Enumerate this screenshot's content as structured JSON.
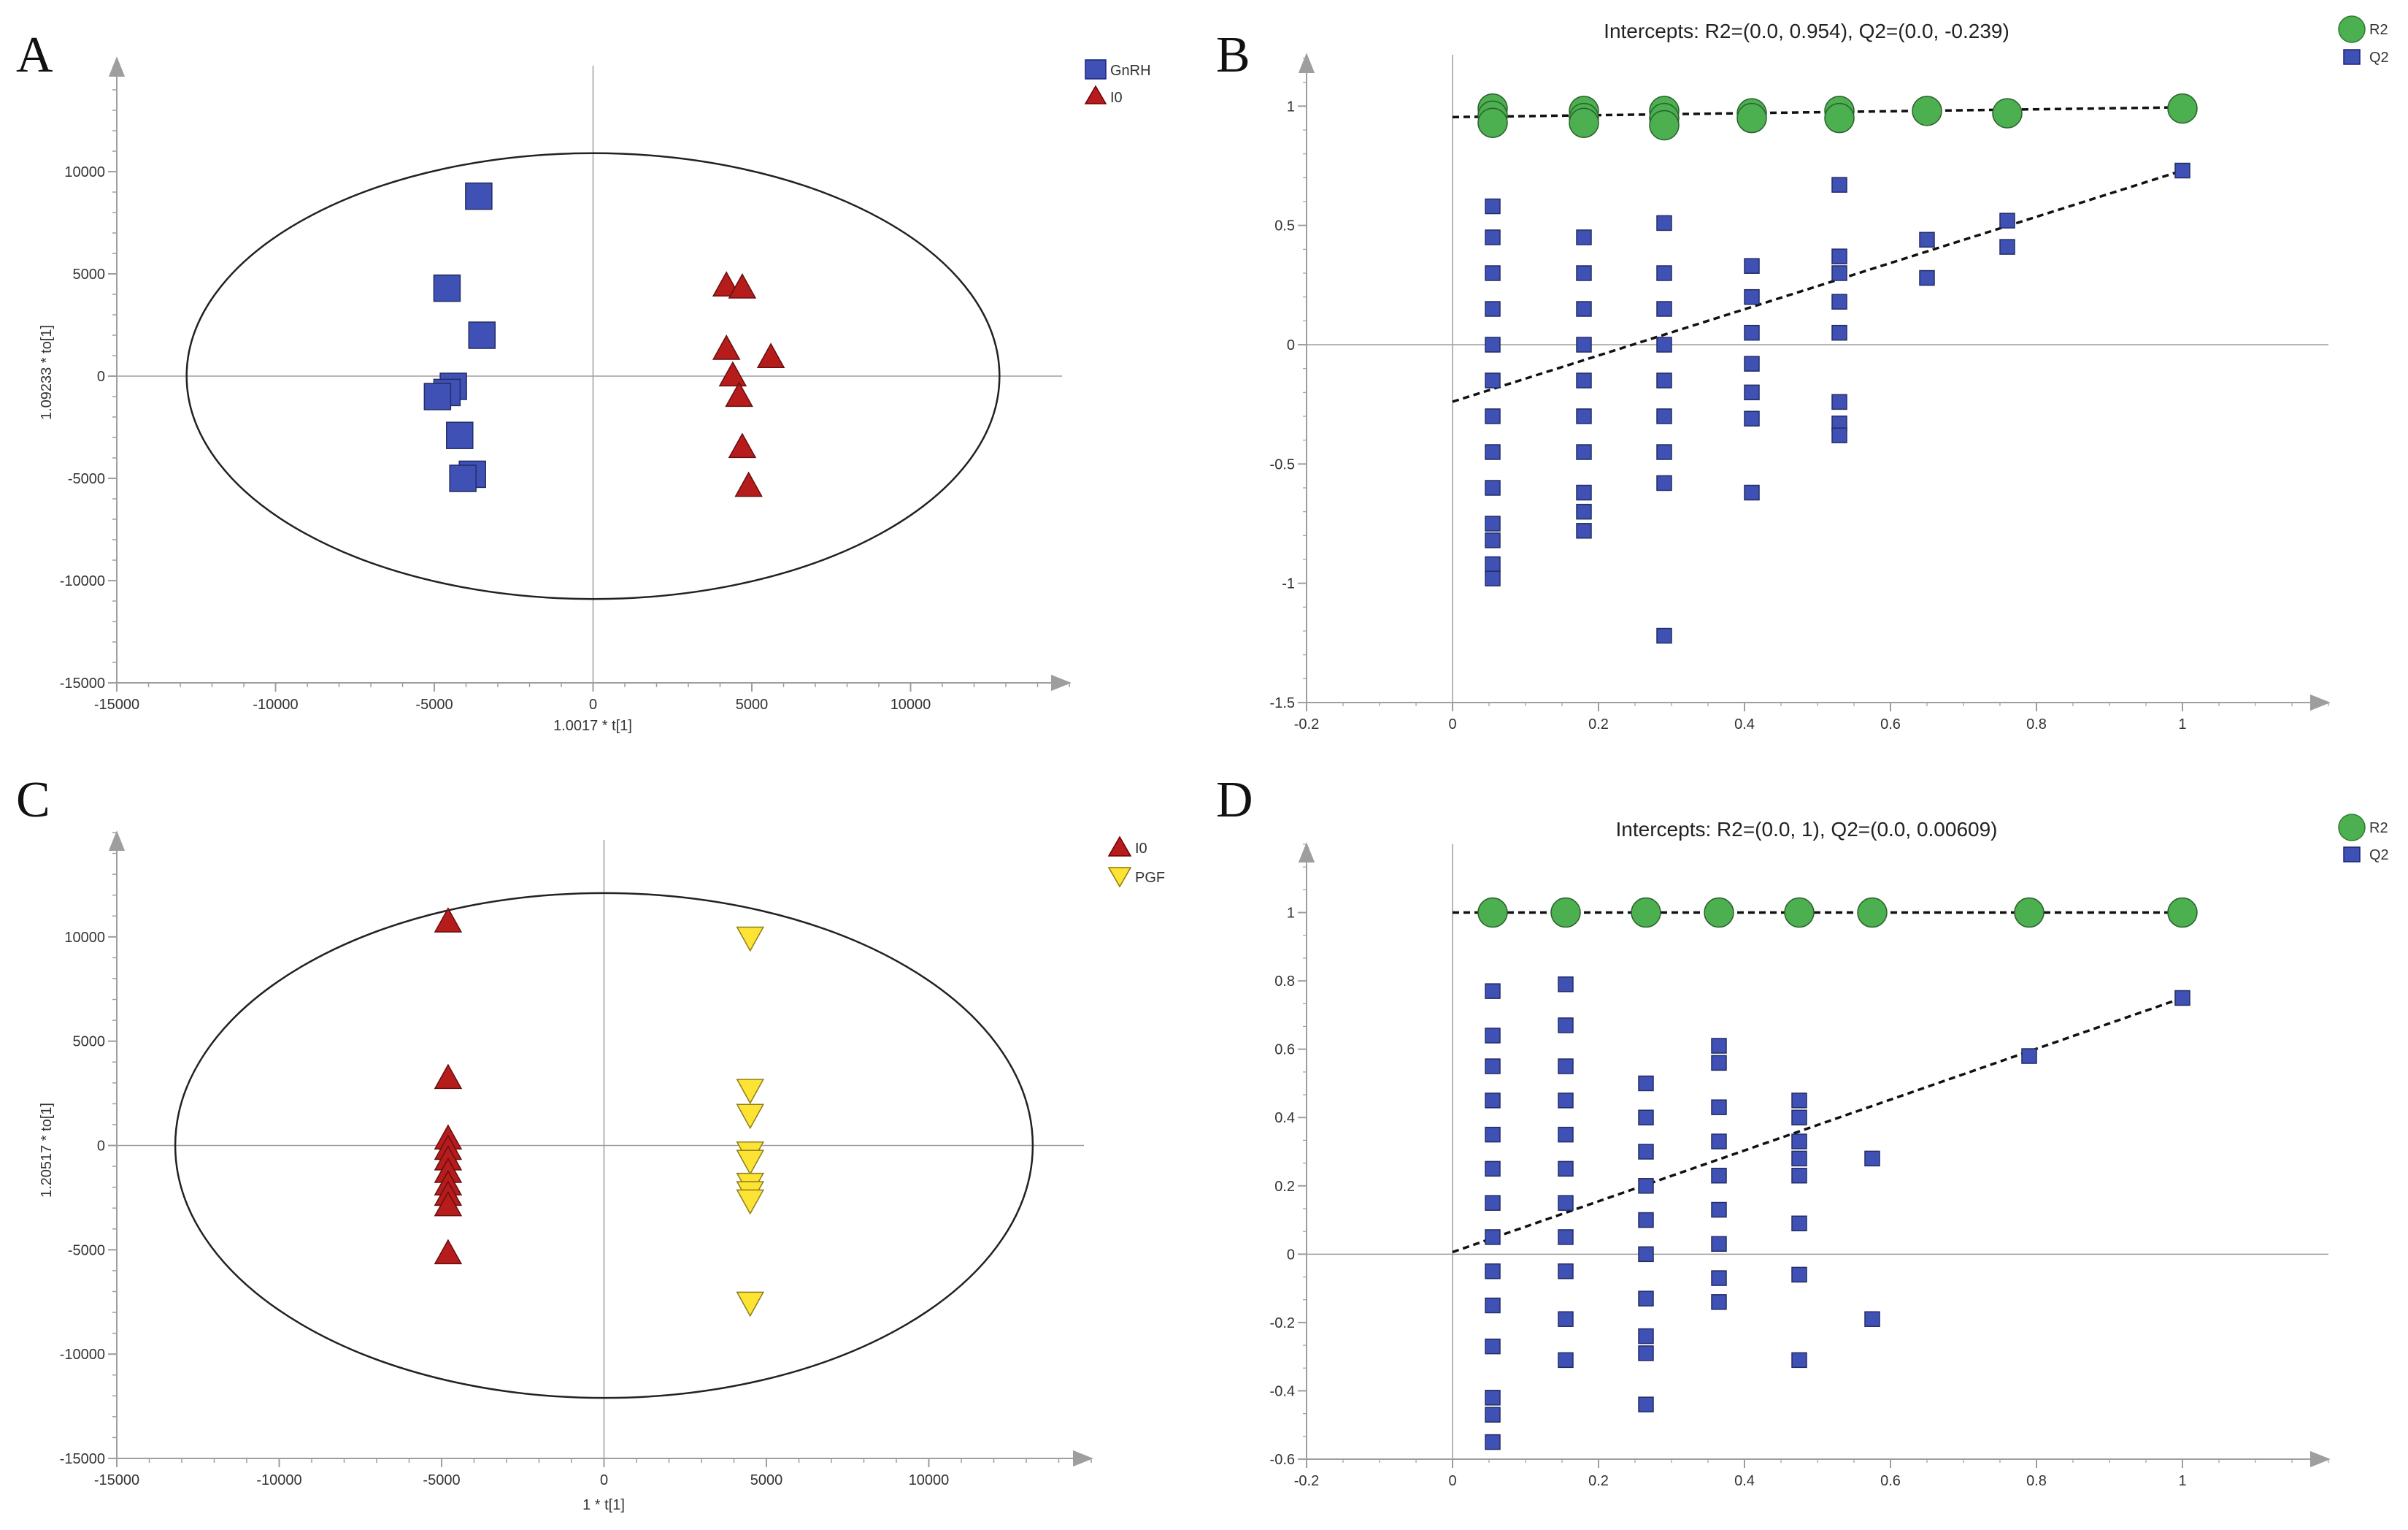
{
  "colors": {
    "blue": "#3f51b5",
    "red": "#b71c1c",
    "yellow": "#fde333",
    "green": "#4caf50",
    "axis": "#999999",
    "text": "#333333"
  },
  "chart_data": [
    {
      "panel": "A",
      "type": "scatter",
      "xlabel": "1.0017 * t[1]",
      "ylabel": "1.09233 * to[1]",
      "xlim": [
        -15000,
        15000
      ],
      "ylim": [
        -15000,
        15000
      ],
      "xticks": [
        -15000,
        -10000,
        -5000,
        0,
        5000,
        10000
      ],
      "yticks": [
        -15000,
        -10000,
        -5000,
        0,
        5000,
        10000
      ],
      "ellipse": {
        "rx": 12800,
        "ry": 10900
      },
      "series": [
        {
          "name": "GnRH",
          "marker": "square",
          "color": "#3f51b5",
          "points": [
            [
              -3600,
              8800
            ],
            [
              -4600,
              4300
            ],
            [
              -3500,
              2000
            ],
            [
              -4400,
              -500
            ],
            [
              -4600,
              -800
            ],
            [
              -4900,
              -1000
            ],
            [
              -4200,
              -2900
            ],
            [
              -3800,
              -4800
            ],
            [
              -4100,
              -5000
            ]
          ]
        },
        {
          "name": "I0",
          "marker": "triangle-up",
          "color": "#b71c1c",
          "points": [
            [
              4200,
              4500
            ],
            [
              4700,
              4400
            ],
            [
              4200,
              1400
            ],
            [
              5600,
              1000
            ],
            [
              4400,
              100
            ],
            [
              4600,
              -900
            ],
            [
              4700,
              -3400
            ],
            [
              4900,
              -5300
            ]
          ]
        }
      ]
    },
    {
      "panel": "B",
      "type": "scatter",
      "title": "Intercepts: R2=(0.0, 0.954), Q2=(0.0, -0.239)",
      "xlim": [
        -0.2,
        1.2
      ],
      "ylim": [
        -1.5,
        1.2
      ],
      "xticks": [
        -0.2,
        0,
        0.2,
        0.4,
        0.6,
        0.8,
        1
      ],
      "yticks": [
        -1.5,
        -1,
        -0.5,
        0,
        0.5,
        1
      ],
      "series": [
        {
          "name": "R2",
          "marker": "circle",
          "color": "#4caf50",
          "points": [
            [
              0.055,
              0.99
            ],
            [
              0.055,
              0.96
            ],
            [
              0.055,
              0.93
            ],
            [
              0.18,
              0.98
            ],
            [
              0.18,
              0.95
            ],
            [
              0.18,
              0.93
            ],
            [
              0.29,
              0.98
            ],
            [
              0.29,
              0.95
            ],
            [
              0.29,
              0.92
            ],
            [
              0.41,
              0.97
            ],
            [
              0.41,
              0.95
            ],
            [
              0.53,
              0.98
            ],
            [
              0.53,
              0.95
            ],
            [
              0.65,
              0.98
            ],
            [
              0.76,
              0.97
            ],
            [
              1.0,
              0.99
            ]
          ]
        },
        {
          "name": "Q2",
          "marker": "square",
          "color": "#3f51b5",
          "points": [
            [
              0.055,
              0.58
            ],
            [
              0.055,
              0.45
            ],
            [
              0.055,
              0.3
            ],
            [
              0.055,
              0.15
            ],
            [
              0.055,
              0.0
            ],
            [
              0.055,
              -0.15
            ],
            [
              0.055,
              -0.3
            ],
            [
              0.055,
              -0.45
            ],
            [
              0.055,
              -0.6
            ],
            [
              0.055,
              -0.75
            ],
            [
              0.055,
              -0.82
            ],
            [
              0.055,
              -0.92
            ],
            [
              0.055,
              -0.98
            ],
            [
              0.18,
              0.45
            ],
            [
              0.18,
              0.3
            ],
            [
              0.18,
              0.15
            ],
            [
              0.18,
              0.0
            ],
            [
              0.18,
              -0.15
            ],
            [
              0.18,
              -0.3
            ],
            [
              0.18,
              -0.45
            ],
            [
              0.18,
              -0.62
            ],
            [
              0.18,
              -0.7
            ],
            [
              0.18,
              -0.78
            ],
            [
              0.29,
              0.51
            ],
            [
              0.29,
              0.3
            ],
            [
              0.29,
              0.15
            ],
            [
              0.29,
              0.0
            ],
            [
              0.29,
              -0.15
            ],
            [
              0.29,
              -0.3
            ],
            [
              0.29,
              -0.45
            ],
            [
              0.29,
              -0.58
            ],
            [
              0.29,
              -1.22
            ],
            [
              0.41,
              0.33
            ],
            [
              0.41,
              0.2
            ],
            [
              0.41,
              0.05
            ],
            [
              0.41,
              -0.08
            ],
            [
              0.41,
              -0.2
            ],
            [
              0.41,
              -0.31
            ],
            [
              0.41,
              -0.62
            ],
            [
              0.53,
              0.67
            ],
            [
              0.53,
              0.37
            ],
            [
              0.53,
              0.3
            ],
            [
              0.53,
              0.18
            ],
            [
              0.53,
              0.05
            ],
            [
              0.53,
              -0.24
            ],
            [
              0.53,
              -0.33
            ],
            [
              0.53,
              -0.38
            ],
            [
              0.65,
              0.44
            ],
            [
              0.65,
              0.28
            ],
            [
              0.76,
              0.52
            ],
            [
              0.76,
              0.41
            ],
            [
              1.0,
              0.73
            ]
          ]
        }
      ],
      "trendlines": [
        {
          "series": "R2",
          "from": [
            0,
            0.954
          ],
          "to": [
            1,
            0.995
          ]
        },
        {
          "series": "Q2",
          "from": [
            0,
            -0.239
          ],
          "to": [
            1,
            0.73
          ]
        }
      ]
    },
    {
      "panel": "C",
      "type": "scatter",
      "xlabel": "1 * t[1]",
      "ylabel": "1.20517 * to[1]",
      "xlim": [
        -15000,
        15000
      ],
      "ylim": [
        -15000,
        15000
      ],
      "xticks": [
        -15000,
        -10000,
        -5000,
        0,
        5000,
        10000
      ],
      "yticks": [
        -15000,
        -10000,
        -5000,
        0,
        5000,
        10000
      ],
      "ellipse": {
        "rx": 13200,
        "ry": 12100
      },
      "series": [
        {
          "name": "I0",
          "marker": "triangle-up",
          "color": "#b71c1c",
          "points": [
            [
              -4800,
              10800
            ],
            [
              -4800,
              3300
            ],
            [
              -4800,
              400
            ],
            [
              -4800,
              -100
            ],
            [
              -4800,
              -600
            ],
            [
              -4800,
              -1200
            ],
            [
              -4800,
              -1800
            ],
            [
              -4800,
              -2300
            ],
            [
              -4800,
              -2800
            ],
            [
              -4800,
              -5100
            ]
          ]
        },
        {
          "name": "PGF",
          "marker": "triangle-down",
          "color": "#fde333",
          "points": [
            [
              4500,
              9900
            ],
            [
              4500,
              2600
            ],
            [
              4500,
              1400
            ],
            [
              4500,
              -400
            ],
            [
              4500,
              -800
            ],
            [
              4500,
              -1900
            ],
            [
              4500,
              -2300
            ],
            [
              4500,
              -2700
            ],
            [
              4500,
              -7600
            ]
          ]
        }
      ]
    },
    {
      "panel": "D",
      "type": "scatter",
      "title": "Intercepts: R2=(0.0, 1), Q2=(0.0, 0.00609)",
      "xlim": [
        -0.2,
        1.2
      ],
      "ylim": [
        -0.6,
        1.2
      ],
      "xticks": [
        -0.2,
        0,
        0.2,
        0.4,
        0.6,
        0.8,
        1
      ],
      "yticks": [
        -0.6,
        -0.4,
        -0.2,
        0,
        0.2,
        0.4,
        0.6,
        0.8,
        1
      ],
      "series": [
        {
          "name": "R2",
          "marker": "circle",
          "color": "#4caf50",
          "points": [
            [
              0.055,
              1.0
            ],
            [
              0.155,
              1.0
            ],
            [
              0.265,
              1.0
            ],
            [
              0.365,
              1.0
            ],
            [
              0.475,
              1.0
            ],
            [
              0.575,
              1.0
            ],
            [
              0.79,
              1.0
            ],
            [
              1.0,
              1.0
            ]
          ]
        },
        {
          "name": "Q2",
          "marker": "square",
          "color": "#3f51b5",
          "points": [
            [
              0.055,
              0.77
            ],
            [
              0.055,
              0.64
            ],
            [
              0.055,
              0.55
            ],
            [
              0.055,
              0.45
            ],
            [
              0.055,
              0.35
            ],
            [
              0.055,
              0.25
            ],
            [
              0.055,
              0.15
            ],
            [
              0.055,
              0.05
            ],
            [
              0.055,
              -0.05
            ],
            [
              0.055,
              -0.15
            ],
            [
              0.055,
              -0.27
            ],
            [
              0.055,
              -0.42
            ],
            [
              0.055,
              -0.47
            ],
            [
              0.055,
              -0.55
            ],
            [
              0.155,
              0.79
            ],
            [
              0.155,
              0.67
            ],
            [
              0.155,
              0.55
            ],
            [
              0.155,
              0.45
            ],
            [
              0.155,
              0.35
            ],
            [
              0.155,
              0.25
            ],
            [
              0.155,
              0.15
            ],
            [
              0.155,
              0.05
            ],
            [
              0.155,
              -0.05
            ],
            [
              0.155,
              -0.19
            ],
            [
              0.155,
              -0.31
            ],
            [
              0.265,
              0.5
            ],
            [
              0.265,
              0.4
            ],
            [
              0.265,
              0.3
            ],
            [
              0.265,
              0.2
            ],
            [
              0.265,
              0.1
            ],
            [
              0.265,
              0.0
            ],
            [
              0.265,
              -0.13
            ],
            [
              0.265,
              -0.24
            ],
            [
              0.265,
              -0.29
            ],
            [
              0.265,
              -0.44
            ],
            [
              0.365,
              0.61
            ],
            [
              0.365,
              0.56
            ],
            [
              0.365,
              0.43
            ],
            [
              0.365,
              0.33
            ],
            [
              0.365,
              0.23
            ],
            [
              0.365,
              0.13
            ],
            [
              0.365,
              0.03
            ],
            [
              0.365,
              -0.07
            ],
            [
              0.365,
              -0.14
            ],
            [
              0.475,
              0.45
            ],
            [
              0.475,
              0.4
            ],
            [
              0.475,
              0.33
            ],
            [
              0.475,
              0.28
            ],
            [
              0.475,
              0.23
            ],
            [
              0.475,
              0.09
            ],
            [
              0.475,
              -0.06
            ],
            [
              0.475,
              -0.31
            ],
            [
              0.575,
              0.28
            ],
            [
              0.575,
              -0.19
            ],
            [
              0.79,
              0.58
            ],
            [
              1.0,
              0.75
            ]
          ]
        }
      ],
      "trendlines": [
        {
          "series": "R2",
          "from": [
            0,
            1.0
          ],
          "to": [
            1,
            1.0
          ]
        },
        {
          "series": "Q2",
          "from": [
            0,
            0.00609
          ],
          "to": [
            1,
            0.75
          ]
        }
      ]
    }
  ]
}
